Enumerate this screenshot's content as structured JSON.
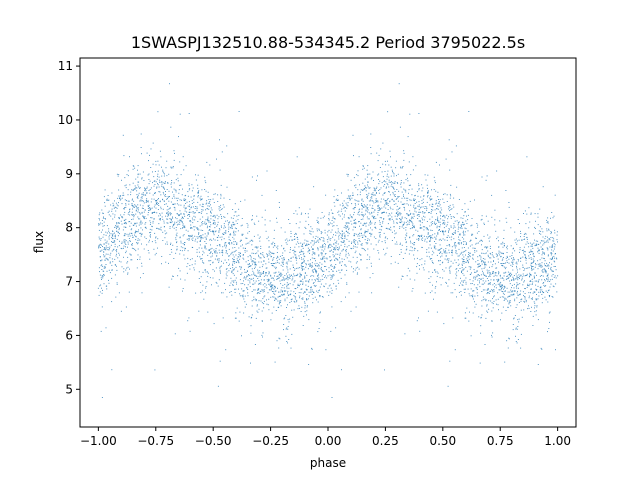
{
  "chart_data": {
    "type": "scatter",
    "title": "1SWASPJ132510.88-534345.2 Period 3795022.5s",
    "xlabel": "phase",
    "ylabel": "flux",
    "xlim": [
      -1.08,
      1.08
    ],
    "ylim": [
      4.3,
      11.15
    ],
    "xticks": [
      -1.0,
      -0.75,
      -0.5,
      -0.25,
      0.0,
      0.25,
      0.5,
      0.75,
      1.0
    ],
    "xtick_labels": [
      "−1.00",
      "−0.75",
      "−0.50",
      "−0.25",
      "0.00",
      "0.25",
      "0.50",
      "0.75",
      "1.00"
    ],
    "yticks": [
      5,
      6,
      7,
      8,
      9,
      10,
      11
    ],
    "ytick_labels": [
      "5",
      "6",
      "7",
      "8",
      "9",
      "10",
      "11"
    ],
    "grid": false,
    "marker_color": "#1f77b4",
    "series": [
      {
        "curve": [
          {
            "phase": 0.0,
            "flux": 7.55
          },
          {
            "phase": 0.05,
            "flux": 7.75
          },
          {
            "phase": 0.1,
            "flux": 7.95
          },
          {
            "phase": 0.15,
            "flux": 8.2
          },
          {
            "phase": 0.2,
            "flux": 8.35
          },
          {
            "phase": 0.25,
            "flux": 8.45
          },
          {
            "phase": 0.3,
            "flux": 8.35
          },
          {
            "phase": 0.35,
            "flux": 8.2
          },
          {
            "phase": 0.4,
            "flux": 8.05
          },
          {
            "phase": 0.45,
            "flux": 7.95
          },
          {
            "phase": 0.5,
            "flux": 7.85
          },
          {
            "phase": 0.55,
            "flux": 7.7
          },
          {
            "phase": 0.6,
            "flux": 7.5
          },
          {
            "phase": 0.65,
            "flux": 7.3
          },
          {
            "phase": 0.7,
            "flux": 7.15
          },
          {
            "phase": 0.75,
            "flux": 7.05
          },
          {
            "phase": 0.8,
            "flux": 7.05
          },
          {
            "phase": 0.85,
            "flux": 7.1
          },
          {
            "phase": 0.9,
            "flux": 7.2
          },
          {
            "phase": 0.95,
            "flux": 7.35
          },
          {
            "phase": 1.0,
            "flux": 7.55
          }
        ],
        "scatter_sd": 0.45,
        "n_points_per_cycle": 2600,
        "flux_min_observed": 4.65,
        "flux_max_observed": 10.75
      }
    ]
  }
}
